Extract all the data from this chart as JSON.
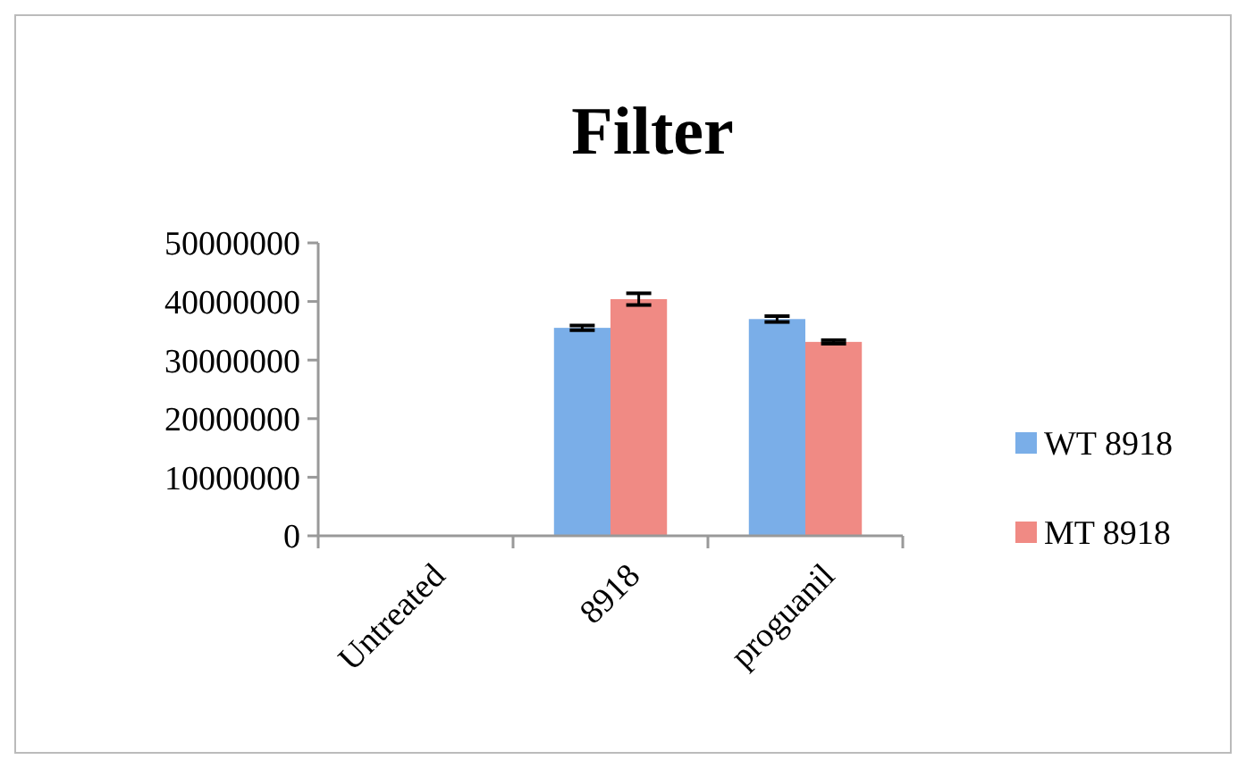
{
  "chart_data": {
    "type": "bar",
    "title": "Filter",
    "categories": [
      "Untreated",
      "8918",
      "proguanil"
    ],
    "series": [
      {
        "name": "WT 8918",
        "color": "#7aaee8",
        "values": [
          0,
          35500000,
          37000000
        ],
        "errors": [
          null,
          400000,
          500000
        ]
      },
      {
        "name": "MT 8918",
        "color": "#f08a84",
        "values": [
          0,
          40400000,
          33100000
        ],
        "errors": [
          null,
          1000000,
          300000
        ]
      }
    ],
    "ylim": [
      0,
      50000000
    ],
    "yticks": [
      0,
      10000000,
      20000000,
      30000000,
      40000000,
      50000000
    ],
    "grid": false,
    "legend": "right"
  }
}
